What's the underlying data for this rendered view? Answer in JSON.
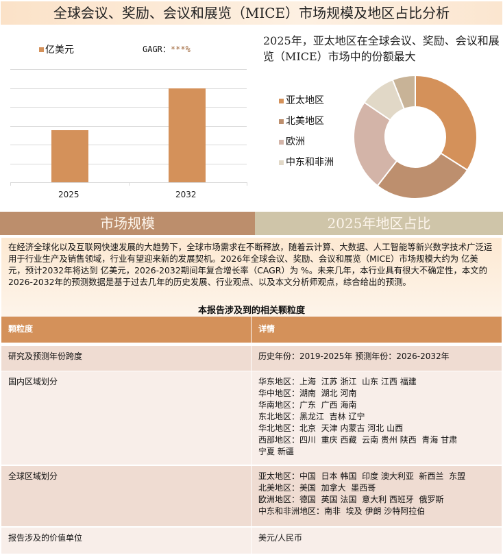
{
  "title": "全球会议、奖励、会议和展览（MICE）市场规模及地区占比分析",
  "bar_chart": {
    "chart_data": {
      "type": "bar",
      "categories": [
        "2025",
        "2032"
      ],
      "values": [
        2.75,
        5.0
      ],
      "legend": "亿美元",
      "gagr_label": "GAGR：",
      "gagr_value": "***%",
      "ylim": [
        0,
        6
      ],
      "grid": true,
      "color": "#d4915a"
    }
  },
  "pie_chart": {
    "title": "2025年，亚太地区在全球会议、奖励、会议和展览（MICE）市场中的份额最大",
    "chart_data": {
      "type": "pie",
      "donut": true,
      "labels": [
        "亚太地区",
        "北美地区",
        "欧洲",
        "中东和非洲",
        ""
      ],
      "values": [
        34,
        26.5,
        24,
        9.5,
        6
      ],
      "colors": [
        "#d4915a",
        "#bd8f6e",
        "#d3b4a8",
        "#e1d8c7",
        "#c8b397"
      ]
    }
  },
  "sections": {
    "left": "市场规模",
    "right": "2025年地区占比",
    "left_color": "#bc8e6c",
    "right_color": "#cfc5a9"
  },
  "paragraph": "在经济全球化以及互联网快速发展的大趋势下，全球市场需求在不断释放，随着云计算、大数据、人工智能等新兴数字技术广泛运用于行业生产及销售领域，行业有望迎来新的发展契机。2026年全球会议、奖励、会议和展览（MICE）市场规模大约为 亿美元，预计2032年将达到 亿美元，2026-2032期间年复合增长率（CAGR）为 %。未来几年，本行业具有很大不确定性，本文的2026-2032年的预测数据是基于过去几年的历史发展、行业观点、以及本文分析师观点，综合给出的预测。",
  "table": {
    "title": "本报告涉及到的相关颗粒度",
    "headers": [
      "颗粒度",
      "详情"
    ],
    "rows": [
      {
        "label": "研究及预测年份跨度",
        "lines": [
          "历史年份：2019-2025年 预测年份：2026-2032年"
        ]
      },
      {
        "label": "国内区域划分",
        "lines": [
          "华东地区：上海  江苏 浙江  山东 江西 福建",
          "华中地区：湖南  湖北 河南",
          "华南地区：广东  广西 海南",
          "东北地区：黑龙江  吉林 辽宁",
          "华北地区：北京  天津 内蒙古 河北 山西",
          "西部地区：四川  重庆 西藏  云南 贵州 陕西  青海 甘肃",
          "宁夏 新疆"
        ]
      },
      {
        "label": "全球区域划分",
        "lines": [
          "亚太地区：中国  日本 韩国  印度 澳大利亚  新西兰  东盟",
          "北美地区：美国  加拿大  墨西哥",
          "欧洲地区：德国  英国 法国  意大利 西班牙  俄罗斯",
          "中东和非洲地区：南非  埃及 伊朗 沙特阿拉伯"
        ]
      },
      {
        "label": "报告涉及的价值单位",
        "lines": [
          "美元/人民币"
        ]
      }
    ]
  }
}
